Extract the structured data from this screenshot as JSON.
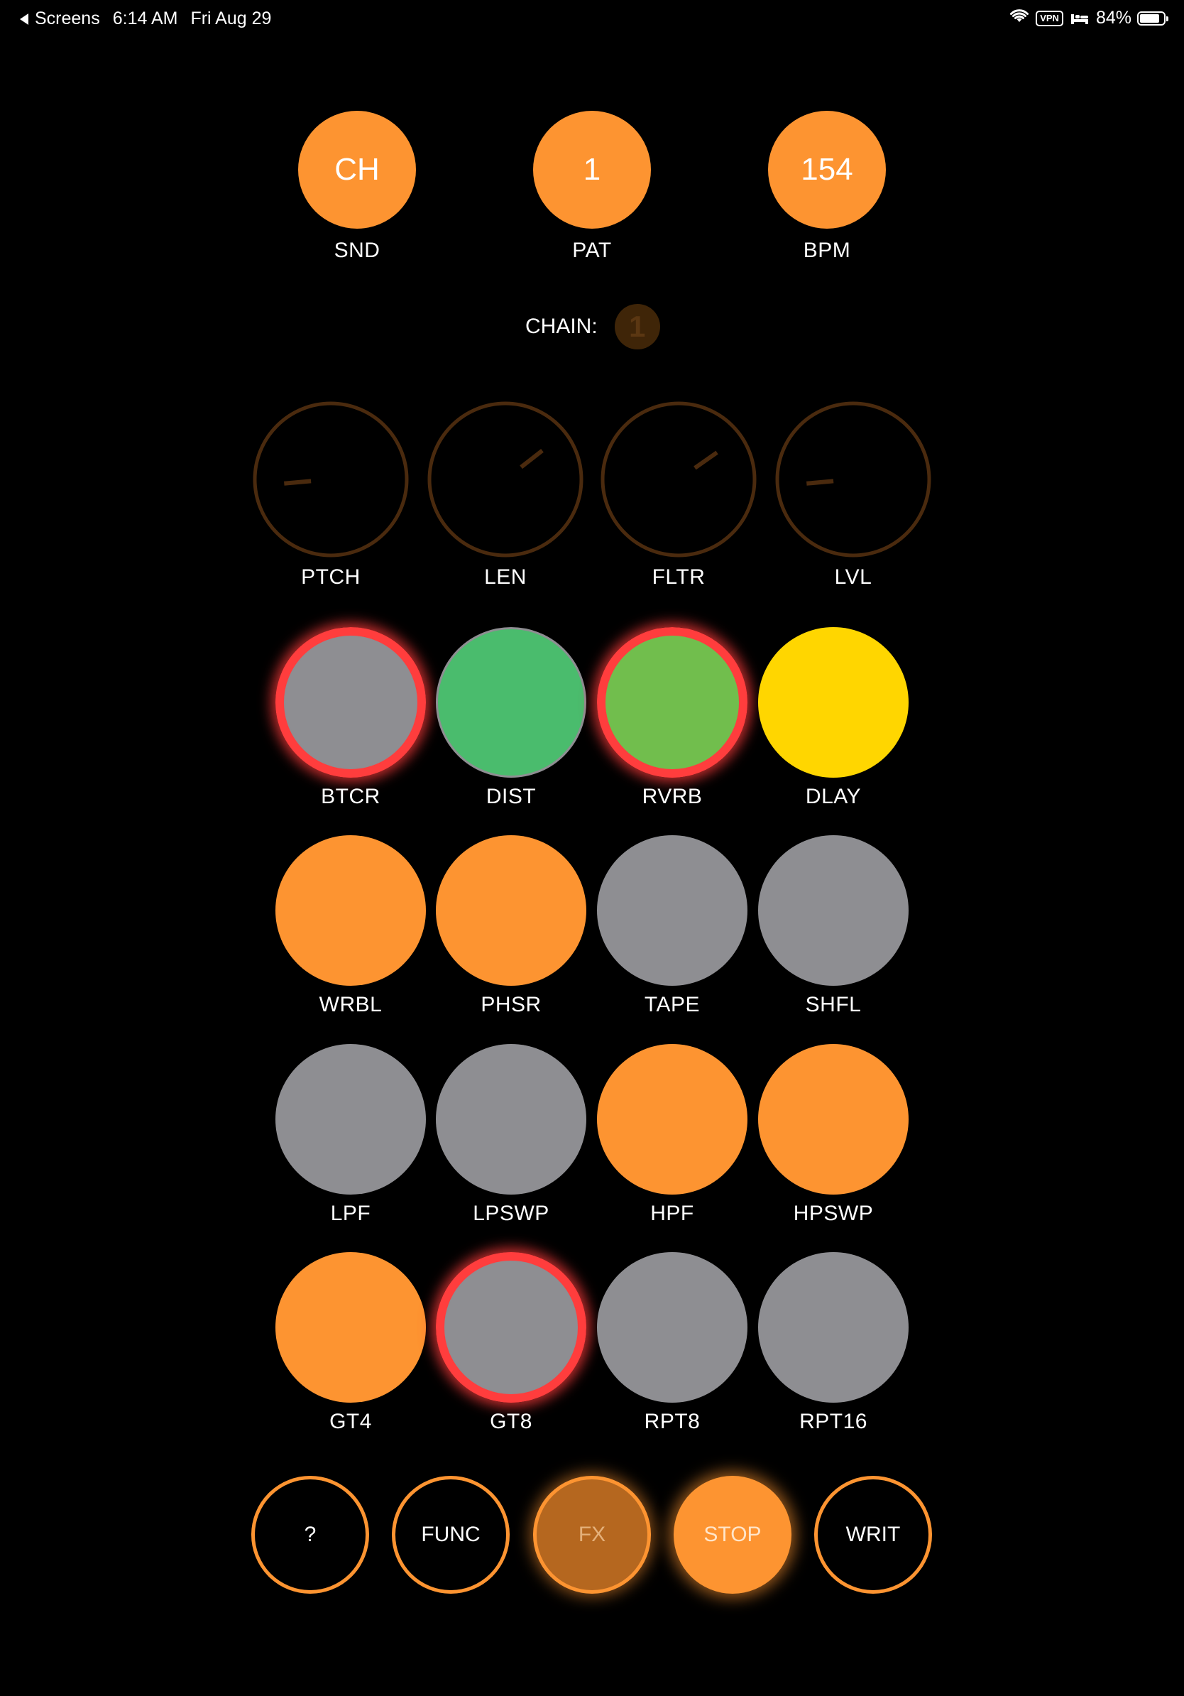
{
  "status_bar": {
    "back_label": "Screens",
    "time": "6:14 AM",
    "date": "Fri Aug 29",
    "vpn": "VPN",
    "battery_percent": "84%",
    "battery_level": 0.84
  },
  "top_controls": [
    {
      "value": "CH",
      "label": "SND"
    },
    {
      "value": "1",
      "label": "PAT"
    },
    {
      "value": "154",
      "label": "BPM"
    }
  ],
  "chain": {
    "label": "CHAIN:",
    "value": "1"
  },
  "knobs": [
    {
      "label": "PTCH",
      "angle_deg": 185
    },
    {
      "label": "LEN",
      "angle_deg": 38
    },
    {
      "label": "FLTR",
      "angle_deg": 35
    },
    {
      "label": "LVL",
      "angle_deg": 185
    }
  ],
  "pads": [
    {
      "label": "BTCR",
      "style": "gray-ring"
    },
    {
      "label": "DIST",
      "style": "green"
    },
    {
      "label": "RVRB",
      "style": "lime-ring"
    },
    {
      "label": "DLAY",
      "style": "yellow"
    },
    {
      "label": "WRBL",
      "style": "orange"
    },
    {
      "label": "PHSR",
      "style": "orange"
    },
    {
      "label": "TAPE",
      "style": "gray"
    },
    {
      "label": "SHFL",
      "style": "gray"
    },
    {
      "label": "LPF",
      "style": "gray"
    },
    {
      "label": "LPSWP",
      "style": "gray"
    },
    {
      "label": "HPF",
      "style": "orange"
    },
    {
      "label": "HPSWP",
      "style": "orange"
    },
    {
      "label": "GT4",
      "style": "orange"
    },
    {
      "label": "GT8",
      "style": "gray-ring"
    },
    {
      "label": "RPT8",
      "style": "gray"
    },
    {
      "label": "RPT16",
      "style": "gray"
    }
  ],
  "bottom_buttons": [
    {
      "label": "?",
      "style": "outline"
    },
    {
      "label": "FUNC",
      "style": "outline"
    },
    {
      "label": "FX",
      "style": "fx"
    },
    {
      "label": "STOP",
      "style": "stop"
    },
    {
      "label": "WRIT",
      "style": "outline"
    }
  ],
  "colors": {
    "accent_orange": "#fd9431",
    "pad_gray": "#8e8e92",
    "active_ring_red": "#ff3d3d",
    "pad_green": "#4abc6d",
    "pad_lime": "#71be4d",
    "pad_yellow": "#ffd600",
    "knob_ring": "#4a2a0e",
    "background": "#000000"
  }
}
